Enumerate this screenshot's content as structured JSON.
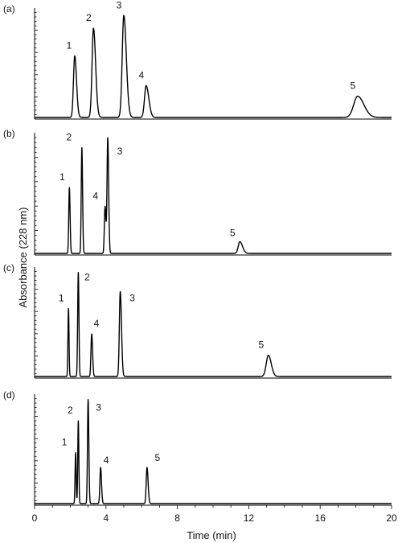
{
  "chart_data": {
    "type": "line",
    "xlabel": "Time (min)",
    "ylabel": "Absorbance (228 nm)",
    "xlim": [
      0,
      20
    ],
    "x_ticks": [
      "0",
      "4",
      "8",
      "12",
      "16",
      "20"
    ],
    "grid": false,
    "panels": [
      {
        "label": "(a)",
        "peaks": [
          {
            "name": "1",
            "time": 2.25,
            "height": 0.58,
            "width": 0.07,
            "tail": 0.1
          },
          {
            "name": "2",
            "time": 3.3,
            "height": 0.84,
            "width": 0.08,
            "tail": 0.12
          },
          {
            "name": "3",
            "time": 5.0,
            "height": 0.96,
            "width": 0.09,
            "tail": 0.14
          },
          {
            "name": "4",
            "time": 6.25,
            "height": 0.3,
            "width": 0.09,
            "tail": 0.15
          },
          {
            "name": "5",
            "time": 18.1,
            "height": 0.2,
            "width": 0.22,
            "tail": 0.35
          }
        ]
      },
      {
        "label": "(b)",
        "peaks": [
          {
            "name": "1",
            "time": 1.95,
            "height": 0.56,
            "width": 0.035,
            "tail": 0.04
          },
          {
            "name": "2",
            "time": 2.65,
            "height": 0.9,
            "width": 0.035,
            "tail": 0.04
          },
          {
            "name": "4",
            "time": 3.95,
            "height": 0.4,
            "width": 0.04,
            "tail": 0.05
          },
          {
            "name": "3",
            "time": 4.1,
            "height": 0.98,
            "width": 0.04,
            "tail": 0.05
          },
          {
            "name": "5",
            "time": 11.5,
            "height": 0.1,
            "width": 0.09,
            "tail": 0.15
          }
        ]
      },
      {
        "label": "(c)",
        "peaks": [
          {
            "name": "1",
            "time": 1.9,
            "height": 0.64,
            "width": 0.03,
            "tail": 0.03
          },
          {
            "name": "2",
            "time": 2.45,
            "height": 0.98,
            "width": 0.035,
            "tail": 0.035
          },
          {
            "name": "4",
            "time": 3.2,
            "height": 0.4,
            "width": 0.04,
            "tail": 0.05
          },
          {
            "name": "3",
            "time": 4.8,
            "height": 0.8,
            "width": 0.05,
            "tail": 0.07
          },
          {
            "name": "5",
            "time": 13.1,
            "height": 0.2,
            "width": 0.12,
            "tail": 0.16
          }
        ]
      },
      {
        "label": "(d)",
        "peaks": [
          {
            "name": "1",
            "time": 2.3,
            "height": 0.48,
            "width": 0.03,
            "tail": 0.03
          },
          {
            "name": "2",
            "time": 2.45,
            "height": 0.78,
            "width": 0.03,
            "tail": 0.03
          },
          {
            "name": "3",
            "time": 3.0,
            "height": 0.98,
            "width": 0.035,
            "tail": 0.04
          },
          {
            "name": "4",
            "time": 3.7,
            "height": 0.34,
            "width": 0.04,
            "tail": 0.05
          },
          {
            "name": "5",
            "time": 6.3,
            "height": 0.34,
            "width": 0.045,
            "tail": 0.06
          }
        ]
      }
    ]
  }
}
